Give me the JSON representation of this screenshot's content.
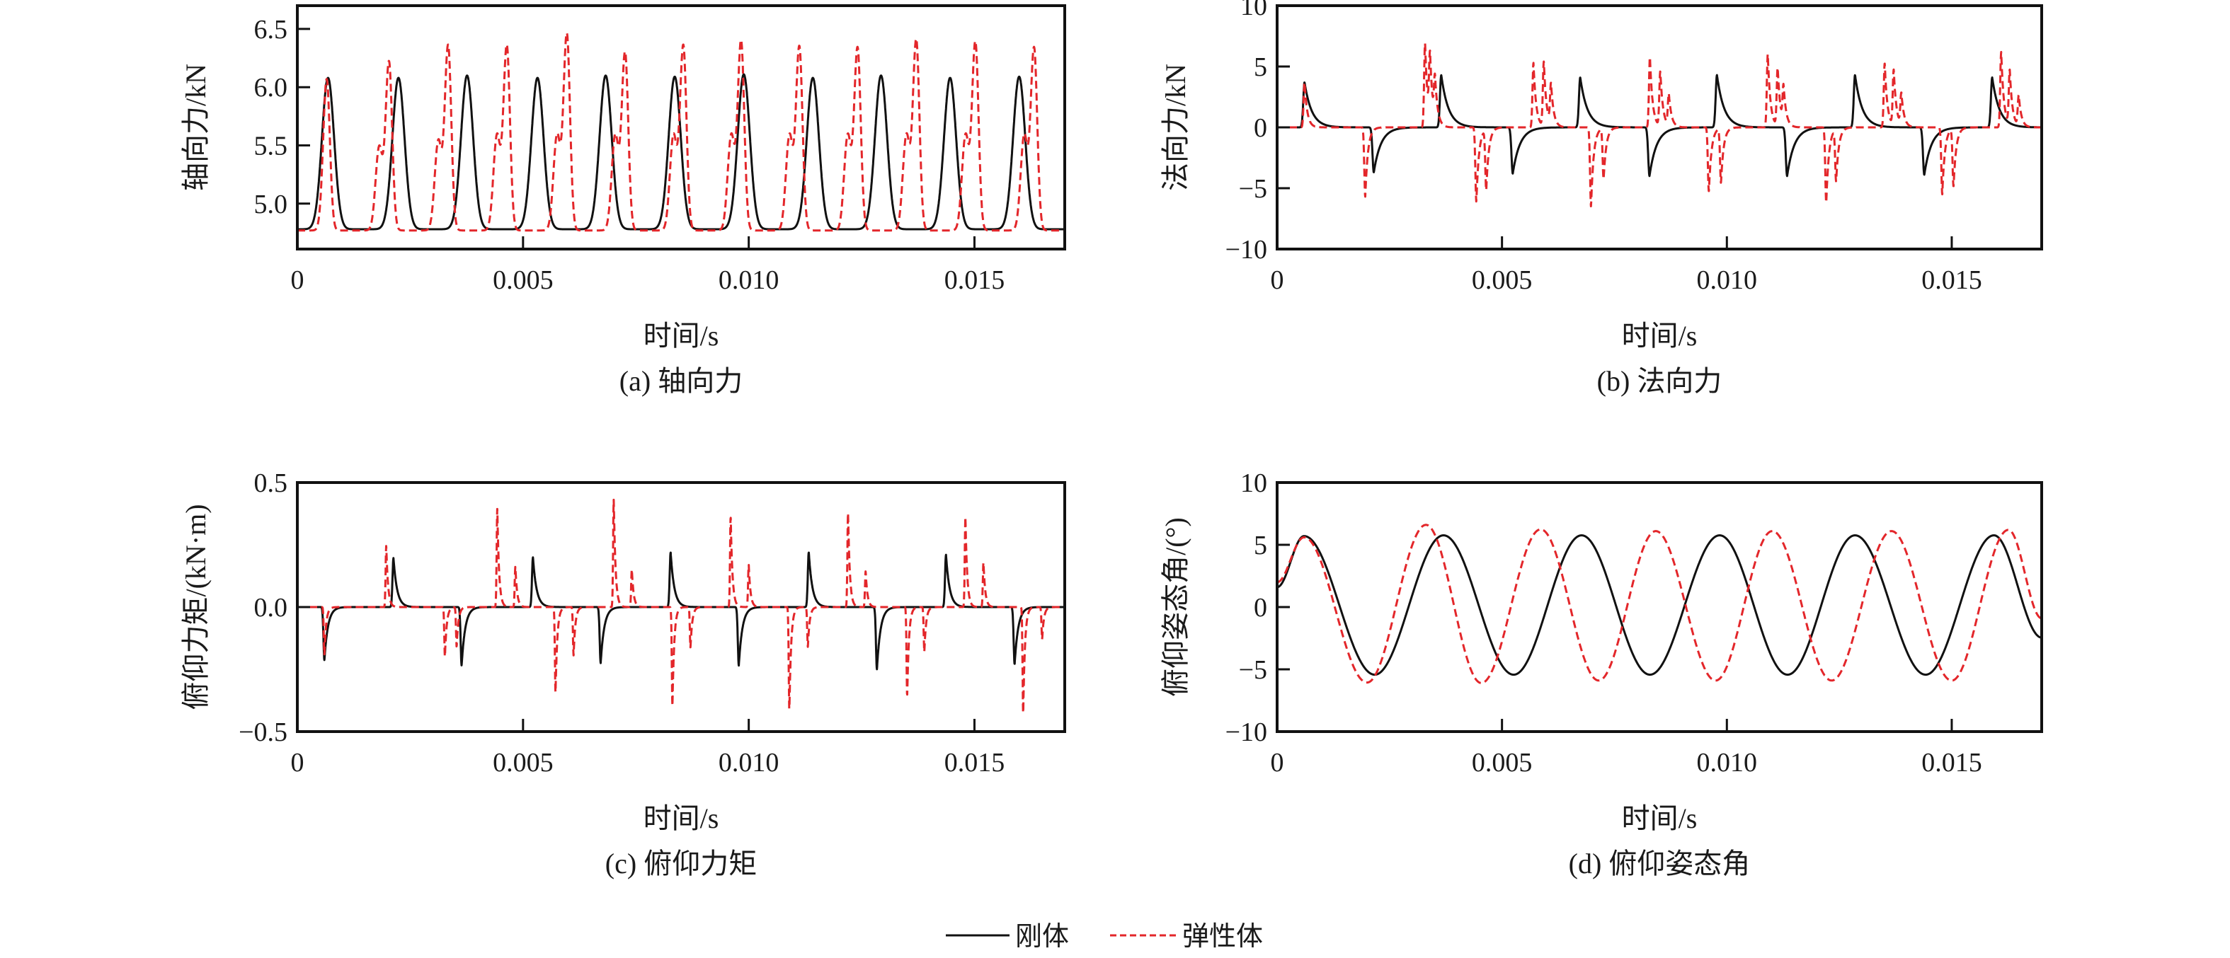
{
  "legend": {
    "entries": [
      {
        "name": "刚体",
        "color": "#111111",
        "style": "solid"
      },
      {
        "name": "弹性体",
        "color": "#e3262a",
        "style": "dashed"
      }
    ]
  },
  "chart_data": [
    {
      "type": "line",
      "subtitle": "(a) 轴向力",
      "xlabel": "时间/s",
      "ylabel": "轴向力/kN",
      "xlim": [
        0,
        0.017
      ],
      "ylim": [
        4.61,
        6.7
      ],
      "grid": false,
      "xticks": [
        0,
        0.005,
        0.01,
        0.015
      ],
      "xtick_labels": [
        "0",
        "0.005",
        "0.010",
        "0.015"
      ],
      "yticks": [
        5.0,
        5.5,
        6.0,
        6.5
      ],
      "ytick_labels": [
        "5.0",
        "5.5",
        "6.0",
        "6.5"
      ],
      "series": [
        {
          "name": "刚体",
          "model": "gaussian-pulses",
          "baseline": 4.78,
          "rise": 0.00019,
          "decay": 0.00019,
          "pulses": [
            [
              0.00068,
              1.3
            ],
            [
              0.00224,
              1.3
            ],
            [
              0.00376,
              1.32
            ],
            [
              0.00532,
              1.3
            ],
            [
              0.00683,
              1.32
            ],
            [
              0.00836,
              1.31
            ],
            [
              0.00989,
              1.33
            ],
            [
              0.01142,
              1.3
            ],
            [
              0.01293,
              1.32
            ],
            [
              0.01446,
              1.3
            ],
            [
              0.01599,
              1.31
            ]
          ]
        },
        {
          "name": "弹性体",
          "model": "gaussian-pulses",
          "baseline": 4.77,
          "rise": 0.00011,
          "decay": 0.0001,
          "pulses": [
            [
              0.00065,
              1.3
            ],
            [
              0.00181,
              0.7
            ],
            [
              0.00203,
              1.45
            ],
            [
              0.00312,
              0.75
            ],
            [
              0.00334,
              1.59
            ],
            [
              0.00442,
              0.8
            ],
            [
              0.00464,
              1.59
            ],
            [
              0.00575,
              0.8
            ],
            [
              0.00597,
              1.69
            ],
            [
              0.00704,
              0.8
            ],
            [
              0.00726,
              1.53
            ],
            [
              0.00833,
              0.8
            ],
            [
              0.00855,
              1.59
            ],
            [
              0.00961,
              0.8
            ],
            [
              0.00983,
              1.63
            ],
            [
              0.0109,
              0.8
            ],
            [
              0.01112,
              1.58
            ],
            [
              0.01219,
              0.8
            ],
            [
              0.01241,
              1.57
            ],
            [
              0.01349,
              0.8
            ],
            [
              0.01371,
              1.64
            ],
            [
              0.0148,
              0.8
            ],
            [
              0.01502,
              1.62
            ],
            [
              0.0161,
              0.8
            ],
            [
              0.01632,
              1.57
            ]
          ]
        }
      ]
    },
    {
      "type": "line",
      "subtitle": "(b) 法向力",
      "xlabel": "时间/s",
      "ylabel": "法向力/kN",
      "xlim": [
        0,
        0.017
      ],
      "ylim": [
        -10,
        10
      ],
      "grid": false,
      "xticks": [
        0,
        0.005,
        0.01,
        0.015
      ],
      "xtick_labels": [
        "0",
        "0.005",
        "0.010",
        "0.015"
      ],
      "yticks": [
        -10,
        -5,
        0,
        5,
        10
      ],
      "ytick_labels": [
        "−10",
        "−5",
        "0",
        "5",
        "10"
      ],
      "series": [
        {
          "name": "刚体",
          "model": "gauss-exp-pulses",
          "baseline": 0,
          "rise": 4e-05,
          "decay": 0.00016,
          "pulses": [
            [
              0.00061,
              3.7
            ],
            [
              0.00215,
              -3.7
            ],
            [
              0.00365,
              4.3
            ],
            [
              0.00524,
              -3.8
            ],
            [
              0.00674,
              4.1
            ],
            [
              0.00828,
              -4.0
            ],
            [
              0.00978,
              4.3
            ],
            [
              0.01134,
              -4.0
            ],
            [
              0.01285,
              4.3
            ],
            [
              0.01439,
              -3.9
            ],
            [
              0.0159,
              4.1
            ]
          ]
        },
        {
          "name": "弹性体",
          "model": "gauss-exp-pulses",
          "baseline": 0,
          "rise": 3e-05,
          "decay": 6e-05,
          "pulses": [
            [
              0.00061,
              3.7
            ],
            [
              0.00196,
              -5.7
            ],
            [
              0.00329,
              6.9
            ],
            [
              0.0034,
              5.2
            ],
            [
              0.00351,
              3.4
            ],
            [
              0.00443,
              -6.1
            ],
            [
              0.00465,
              -5.0
            ],
            [
              0.0057,
              5.3
            ],
            [
              0.00593,
              5.3
            ],
            [
              0.00609,
              3.3
            ],
            [
              0.00698,
              -6.5
            ],
            [
              0.00726,
              -4.2
            ],
            [
              0.00829,
              5.8
            ],
            [
              0.00852,
              4.5
            ],
            [
              0.00871,
              2.6
            ],
            [
              0.0096,
              -5.3
            ],
            [
              0.00987,
              -4.5
            ],
            [
              0.01091,
              6.0
            ],
            [
              0.01113,
              4.8
            ],
            [
              0.01126,
              3.0
            ],
            [
              0.01221,
              -6.2
            ],
            [
              0.01243,
              -4.3
            ],
            [
              0.01351,
              5.3
            ],
            [
              0.01371,
              4.6
            ],
            [
              0.01388,
              2.6
            ],
            [
              0.01479,
              -5.5
            ],
            [
              0.01504,
              -4.8
            ],
            [
              0.0161,
              6.2
            ],
            [
              0.01629,
              4.5
            ],
            [
              0.01649,
              2.5
            ]
          ]
        }
      ]
    },
    {
      "type": "line",
      "subtitle": "(c) 俯仰力矩",
      "xlabel": "时间/s",
      "ylabel": "俯仰力矩/(kN·m)",
      "xlim": [
        0,
        0.017
      ],
      "ylim": [
        -0.5,
        0.5
      ],
      "grid": false,
      "xticks": [
        0,
        0.005,
        0.01,
        0.015
      ],
      "xtick_labels": [
        "0",
        "0.005",
        "0.010",
        "0.015"
      ],
      "yticks": [
        -0.5,
        0,
        0.5
      ],
      "ytick_labels": [
        "−0.5",
        "0.0",
        "0.5"
      ],
      "series": [
        {
          "name": "刚体",
          "model": "gauss-exp-pulses",
          "baseline": 0,
          "rise": 3e-05,
          "decay": 8e-05,
          "pulses": [
            [
              0.0006,
              -0.213
            ],
            [
              0.00213,
              0.197
            ],
            [
              0.00364,
              -0.235
            ],
            [
              0.00522,
              0.2
            ],
            [
              0.00672,
              -0.225
            ],
            [
              0.00827,
              0.22
            ],
            [
              0.00978,
              -0.235
            ],
            [
              0.01133,
              0.22
            ],
            [
              0.01284,
              -0.25
            ],
            [
              0.01437,
              0.21
            ],
            [
              0.01589,
              -0.23
            ]
          ]
        },
        {
          "name": "弹性体",
          "model": "gauss-exp-pulses",
          "baseline": 0,
          "rise": 2e-05,
          "decay": 4e-05,
          "pulses": [
            [
              0.0006,
              -0.19
            ],
            [
              0.00197,
              0.248
            ],
            [
              0.00327,
              -0.2
            ],
            [
              0.00353,
              -0.16
            ],
            [
              0.00443,
              0.396
            ],
            [
              0.00483,
              0.163
            ],
            [
              0.00572,
              -0.346
            ],
            [
              0.00612,
              -0.194
            ],
            [
              0.00701,
              0.434
            ],
            [
              0.00741,
              0.153
            ],
            [
              0.00831,
              -0.398
            ],
            [
              0.00871,
              -0.163
            ],
            [
              0.0096,
              0.365
            ],
            [
              0.01,
              0.17
            ],
            [
              0.0109,
              -0.417
            ],
            [
              0.01131,
              -0.16
            ],
            [
              0.0122,
              0.383
            ],
            [
              0.01259,
              0.144
            ],
            [
              0.01351,
              -0.358
            ],
            [
              0.01389,
              -0.18
            ],
            [
              0.0148,
              0.363
            ],
            [
              0.0152,
              0.18
            ],
            [
              0.01608,
              -0.43
            ],
            [
              0.0165,
              -0.13
            ]
          ]
        }
      ]
    },
    {
      "type": "line",
      "subtitle": "(d) 俯仰姿态角",
      "xlabel": "时间/s",
      "ylabel": "俯仰姿态角/(°)",
      "xlim": [
        0,
        0.017
      ],
      "ylim": [
        -10,
        10
      ],
      "grid": false,
      "xticks": [
        0,
        0.005,
        0.01,
        0.015
      ],
      "xtick_labels": [
        "0",
        "0.005",
        "0.010",
        "0.015"
      ],
      "yticks": [
        -10,
        -5,
        0,
        5,
        10
      ],
      "ytick_labels": [
        "−10",
        "−5",
        "0",
        "5",
        "10"
      ],
      "series": [
        {
          "name": "刚体",
          "model": "extrema",
          "points": [
            [
              0,
              1.6
            ],
            [
              0.0006,
              5.7
            ],
            [
              0.00217,
              -5.43
            ],
            [
              0.0037,
              5.76
            ],
            [
              0.00526,
              -5.43
            ],
            [
              0.00677,
              5.76
            ],
            [
              0.00829,
              -5.43
            ],
            [
              0.00984,
              5.76
            ],
            [
              0.01135,
              -5.43
            ],
            [
              0.01285,
              5.76
            ],
            [
              0.01442,
              -5.43
            ],
            [
              0.01594,
              5.76
            ],
            [
              0.017,
              -2.45
            ]
          ]
        },
        {
          "name": "弹性体",
          "model": "extrema",
          "points": [
            [
              0,
              2.0
            ],
            [
              0.0006,
              5.6
            ],
            [
              0.002,
              -6.06
            ],
            [
              0.00331,
              6.6
            ],
            [
              0.00454,
              -6.1
            ],
            [
              0.00586,
              6.24
            ],
            [
              0.00715,
              -5.9
            ],
            [
              0.00842,
              6.1
            ],
            [
              0.00975,
              -5.9
            ],
            [
              0.01101,
              6.1
            ],
            [
              0.01233,
              -5.9
            ],
            [
              0.01366,
              6.1
            ],
            [
              0.015,
              -5.9
            ],
            [
              0.01626,
              6.2
            ],
            [
              0.017,
              -0.9
            ]
          ]
        }
      ]
    }
  ]
}
